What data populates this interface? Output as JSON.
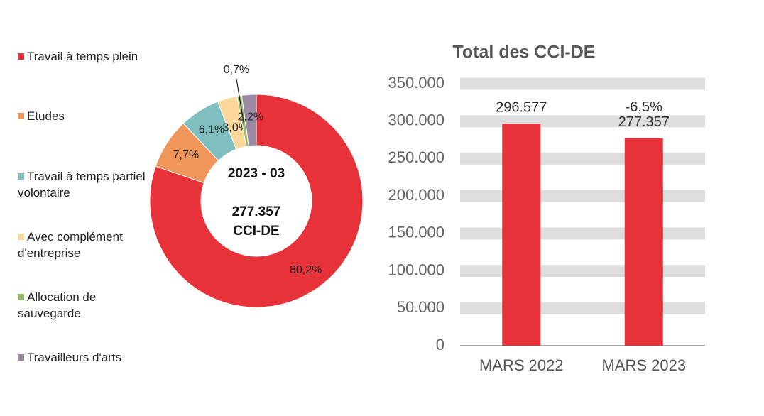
{
  "chart_data": [
    {
      "type": "donut",
      "categories": [
        "Travail à temps plein",
        "Etudes",
        "Travail à temps partiel volontaire",
        "Avec complément d'entreprise",
        "Allocation de sauvegarde",
        "Travailleurs d'arts"
      ],
      "values": [
        80.2,
        7.7,
        6.1,
        3.0,
        0.7,
        2.2
      ],
      "value_labels": [
        "80,2%",
        "7,7%",
        "6,1%",
        "3,0%",
        "0,7%",
        "2,2%"
      ],
      "colors": [
        "#e8323a",
        "#f0965a",
        "#7fbfbf",
        "#fad79a",
        "#9bbb6a",
        "#9c8aa5"
      ],
      "center_title": "2023 - 03",
      "center_value": "277.357",
      "center_unit": "CCI-DE"
    },
    {
      "type": "bar",
      "title": "Total des CCI-DE",
      "categories": [
        "MARS 2022",
        "MARS 2023"
      ],
      "values": [
        296577,
        277357
      ],
      "value_labels": [
        "296.577",
        "277.357"
      ],
      "annotation": "-6,5%",
      "color": "#e8323a",
      "ylim": [
        0,
        350000
      ],
      "yticks": [
        0,
        {
          "value": 50000,
          "label": "50.000"
        },
        {
          "value": 100000,
          "label": "100.000"
        },
        {
          "value": 150000,
          "label": "150.000"
        },
        {
          "value": 200000,
          "label": "200.000"
        },
        {
          "value": 250000,
          "label": "250.000"
        },
        {
          "value": 300000,
          "label": "300.000"
        },
        {
          "value": 350000,
          "label": "350.000"
        }
      ],
      "grid": true
    }
  ]
}
